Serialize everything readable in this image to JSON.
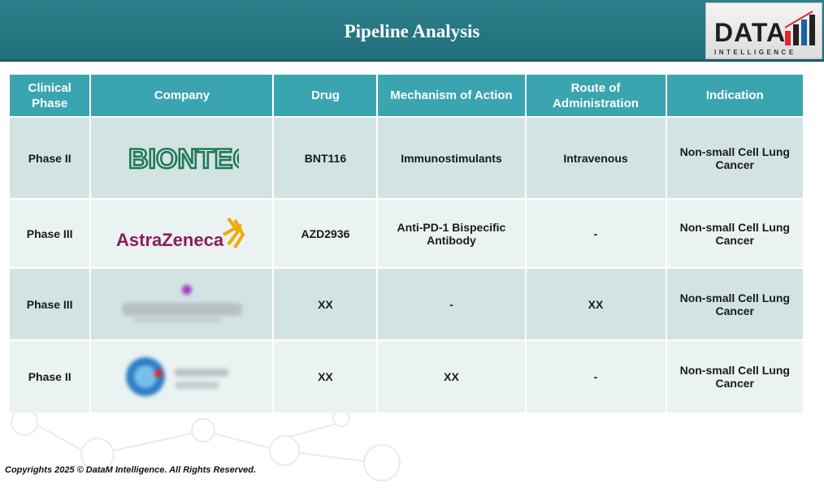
{
  "header": {
    "title": "Pipeline Analysis"
  },
  "brand": {
    "logo_word": "DATA",
    "logo_sub": "INTELLIGENCE",
    "colors": {
      "teal": "#2c7f8a",
      "header_cell": "#3aa5b0"
    }
  },
  "table": {
    "headers": [
      "Clinical Phase",
      "Company",
      "Drug",
      "Mechanism of Action",
      "Route of Administration",
      "Indication"
    ],
    "rows": [
      {
        "phase": "Phase II",
        "company_logo": "BIONTECH",
        "drug": "BNT116",
        "moa": "Immunostimulants",
        "route": "Intravenous",
        "indication": "Non-small Cell Lung Cancer"
      },
      {
        "phase": "Phase III",
        "company_logo": "AstraZeneca",
        "drug": "AZD2936",
        "moa": "Anti-PD-1 Bispecific Antibody",
        "route": "-",
        "indication": "Non-small Cell Lung Cancer"
      },
      {
        "phase": "Phase III",
        "company_logo": "blurred-logo",
        "drug": "XX",
        "moa": "-",
        "route": "XX",
        "indication": "Non-small Cell Lung Cancer"
      },
      {
        "phase": "Phase II",
        "company_logo": "blurred-logo",
        "drug": "XX",
        "moa": "XX",
        "route": "-",
        "indication": "Non-small Cell Lung Cancer"
      }
    ]
  },
  "footer": {
    "copyright": "Copyrights 2025 © DataM Intelligence. All Rights Reserved."
  }
}
